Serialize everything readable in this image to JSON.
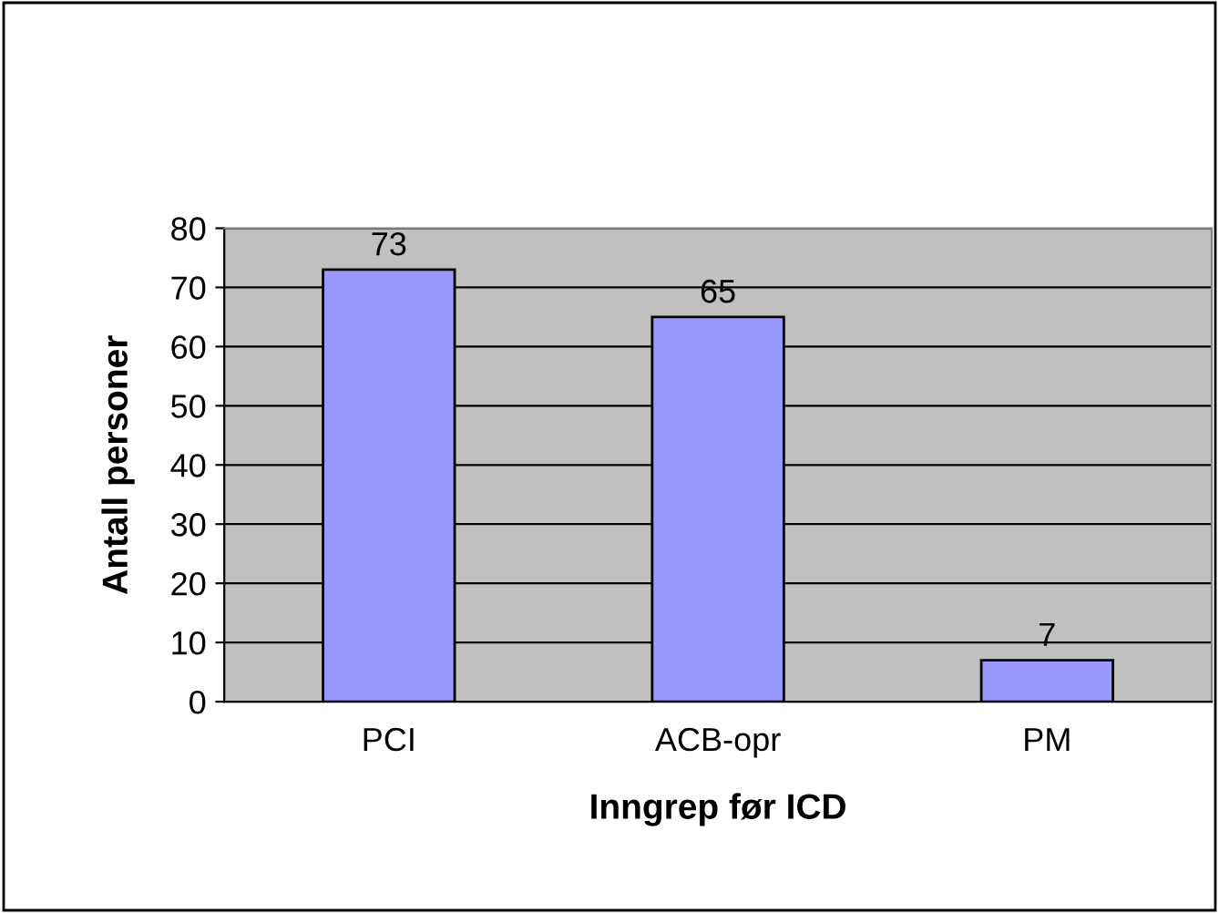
{
  "chart_data": {
    "type": "bar",
    "xlabel": "Inngrep før ICD",
    "ylabel": "Antall personer",
    "categories": [
      "PCI",
      "ACB-opr",
      "PM"
    ],
    "values": [
      73,
      65,
      7
    ],
    "color": "#9999ff",
    "ylim": [
      0,
      80
    ],
    "yticks": [
      0,
      10,
      20,
      30,
      40,
      50,
      60,
      70,
      80
    ],
    "grid": "y",
    "data_labels": true
  }
}
